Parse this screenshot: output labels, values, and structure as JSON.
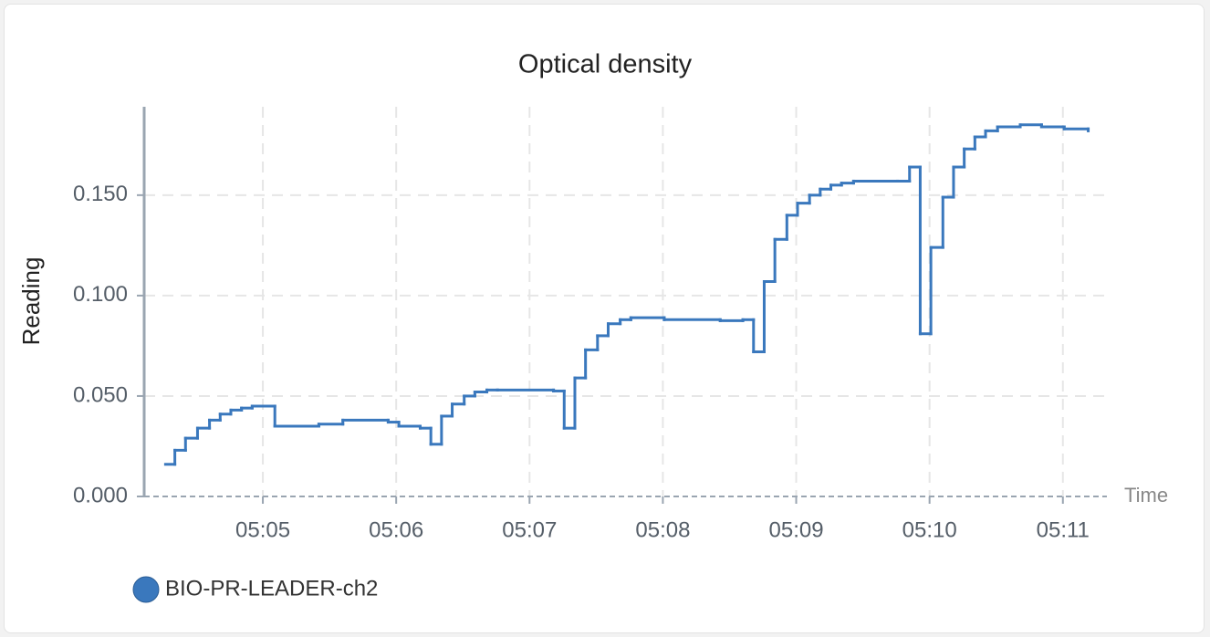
{
  "chart_data": {
    "type": "step",
    "title": "Optical density",
    "y_label": "Reading",
    "x_label": "Time",
    "xlim": [
      4.11,
      11.33
    ],
    "xticks": [
      {
        "value": 5,
        "label": "05:05"
      },
      {
        "value": 6,
        "label": "05:06"
      },
      {
        "value": 7,
        "label": "05:07"
      },
      {
        "value": 8,
        "label": "05:08"
      },
      {
        "value": 9,
        "label": "05:09"
      },
      {
        "value": 10,
        "label": "05:10"
      },
      {
        "value": 11,
        "label": "05:11"
      }
    ],
    "ylim": [
      0,
      0.194
    ],
    "yticks": [
      {
        "value": 0,
        "label": "0.000"
      },
      {
        "value": 0.05,
        "label": "0.050"
      },
      {
        "value": 0.1,
        "label": "0.100"
      },
      {
        "value": 0.15,
        "label": "0.150"
      }
    ],
    "grid": true,
    "x": [
      4.27,
      4.34,
      4.42,
      4.51,
      4.6,
      4.68,
      4.76,
      4.84,
      4.92,
      5.09,
      5.42,
      5.6,
      5.94,
      6.02,
      6.18,
      6.26,
      6.34,
      6.42,
      6.51,
      6.59,
      6.68,
      6.76,
      7.18,
      7.26,
      7.34,
      7.42,
      7.51,
      7.59,
      7.68,
      7.76,
      8.01,
      8.43,
      8.6,
      8.68,
      8.76,
      8.84,
      8.93,
      9.01,
      9.1,
      9.18,
      9.26,
      9.34,
      9.43,
      9.76,
      9.85,
      9.93,
      10.01,
      10.1,
      10.18,
      10.26,
      10.34,
      10.42,
      10.51,
      10.68,
      10.84,
      11.01,
      11.19
    ],
    "series": [
      {
        "name": "BIO-PR-LEADER-ch2",
        "color": "#3a78bd",
        "values": [
          0.016,
          0.023,
          0.029,
          0.034,
          0.038,
          0.041,
          0.043,
          0.044,
          0.045,
          0.035,
          0.036,
          0.038,
          0.037,
          0.035,
          0.034,
          0.026,
          0.04,
          0.046,
          0.05,
          0.052,
          0.053,
          0.053,
          0.0525,
          0.034,
          0.059,
          0.073,
          0.08,
          0.086,
          0.088,
          0.089,
          0.088,
          0.0875,
          0.088,
          0.072,
          0.107,
          0.128,
          0.14,
          0.146,
          0.15,
          0.153,
          0.155,
          0.156,
          0.157,
          0.157,
          0.164,
          0.081,
          0.124,
          0.149,
          0.164,
          0.173,
          0.179,
          0.182,
          0.184,
          0.185,
          0.184,
          0.183,
          0.182
        ]
      }
    ]
  }
}
